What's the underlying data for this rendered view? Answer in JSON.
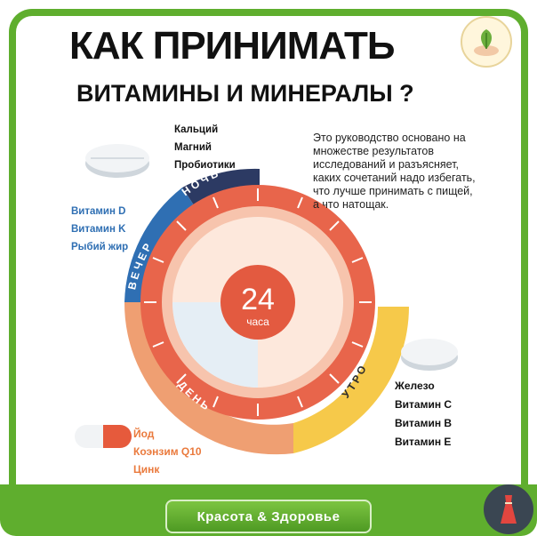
{
  "title": {
    "line1": "КАК ПРИНИМАТЬ",
    "line2": "ВИТАМИНЫ И МИНЕРАЛЫ ?"
  },
  "description": "Это руководство основано на множестве результатов исследований и разъясняет, каких сочетаний надо избегать, что лучше принимать с пищей, а что натощак.",
  "clock": {
    "number": "24",
    "unit": "часа"
  },
  "segments": {
    "night": {
      "label": "НОЧЬ",
      "color": "#2c3a63",
      "items": [
        "Кальций",
        "Магний",
        "Пробиотики"
      ]
    },
    "evening": {
      "label": "ВЕЧЕР",
      "color": "#2f6fb3",
      "items": [
        "Витамин D",
        "Витамин K",
        "Рыбий жир"
      ]
    },
    "day": {
      "label": "ДЕНЬ",
      "color": "#ee9a6c",
      "items": [
        "Йод",
        "Коэнзим Q10",
        "Цинк"
      ]
    },
    "morning": {
      "label": "УТРО",
      "color": "#f6c94a",
      "items": [
        "Железо",
        "Витамин C",
        "Витамин B",
        "Витамин E"
      ]
    }
  },
  "footer": {
    "label": "Красота & Здоровье"
  },
  "icons": [
    "leaf-hand-logo-icon",
    "dress-icon"
  ]
}
